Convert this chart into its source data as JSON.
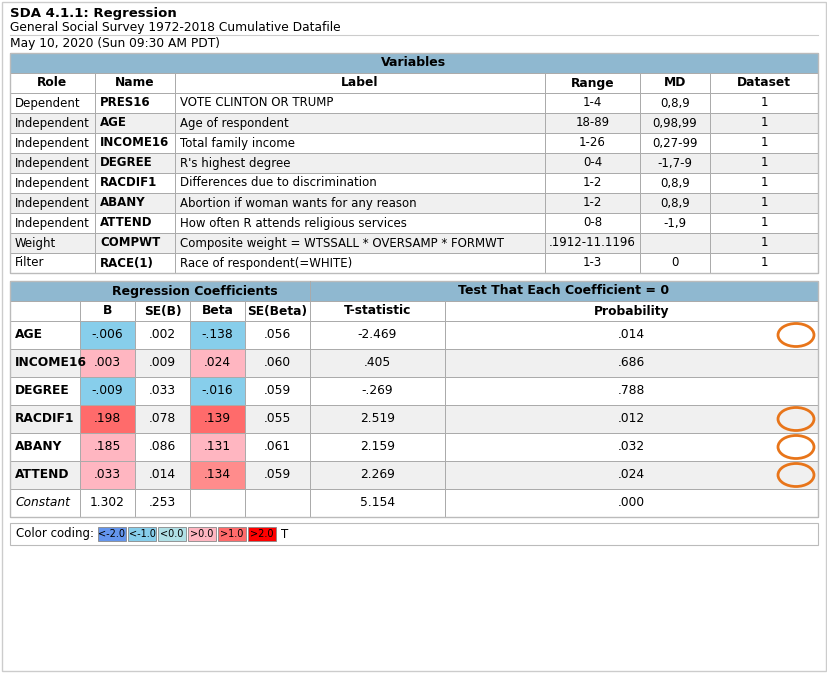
{
  "title": "SDA 4.1.1: Regression",
  "subtitle1": "General Social Survey 1972-2018 Cumulative Datafile",
  "subtitle2": "May 10, 2020 (Sun 09:30 AM PDT)",
  "var_table_header": "Variables",
  "var_col_headers": [
    "Role",
    "Name",
    "Label",
    "Range",
    "MD",
    "Dataset"
  ],
  "var_rows": [
    [
      "Dependent",
      "PRES16",
      "VOTE CLINTON OR TRUMP",
      "1-4",
      "0,8,9",
      "1"
    ],
    [
      "Independent",
      "AGE",
      "Age of respondent",
      "18-89",
      "0,98,99",
      "1"
    ],
    [
      "Independent",
      "INCOME16",
      "Total family income",
      "1-26",
      "0,27-99",
      "1"
    ],
    [
      "Independent",
      "DEGREE",
      "R's highest degree",
      "0-4",
      "-1,7-9",
      "1"
    ],
    [
      "Independent",
      "RACDIF1",
      "Differences due to discrimination",
      "1-2",
      "0,8,9",
      "1"
    ],
    [
      "Independent",
      "ABANY",
      "Abortion if woman wants for any reason",
      "1-2",
      "0,8,9",
      "1"
    ],
    [
      "Independent",
      "ATTEND",
      "How often R attends religious services",
      "0-8",
      "-1,9",
      "1"
    ],
    [
      "Weight",
      "COMPWT",
      "Composite weight = WTSSALL * OVERSAMP * FORMWT",
      ".1912-11.1196",
      "",
      "1"
    ],
    [
      "Filter",
      "RACE(1)",
      "Race of respondent(=WHITE)",
      "1-3",
      "0",
      "1"
    ]
  ],
  "reg_header1": "Regression Coefficients",
  "reg_header2": "Test That Each Coefficient = 0",
  "reg_col_headers": [
    "",
    "B",
    "SE(B)",
    "Beta",
    "SE(Beta)",
    "T-statistic",
    "Probability"
  ],
  "reg_rows": [
    [
      "AGE",
      "-.006",
      ".002",
      "-.138",
      ".056",
      "-2.469",
      ".014"
    ],
    [
      "INCOME16",
      ".003",
      ".009",
      ".024",
      ".060",
      ".405",
      ".686"
    ],
    [
      "DEGREE",
      "-.009",
      ".033",
      "-.016",
      ".059",
      "-.269",
      ".788"
    ],
    [
      "RACDIF1",
      ".198",
      ".078",
      ".139",
      ".055",
      "2.519",
      ".012"
    ],
    [
      "ABANY",
      ".185",
      ".086",
      ".131",
      ".061",
      "2.159",
      ".032"
    ],
    [
      "ATTEND",
      ".033",
      ".014",
      ".134",
      ".059",
      "2.269",
      ".024"
    ],
    [
      "Constant",
      "1.302",
      ".253",
      "",
      "",
      "5.154",
      ".000"
    ]
  ],
  "B_colors": {
    "AGE": "#87CEEB",
    "INCOME16": "#FFB6C1",
    "DEGREE": "#87CEEB",
    "RACDIF1": "#FF6B6B",
    "ABANY": "#FFB6C1",
    "ATTEND": "#FFB6C1",
    "Constant": "none"
  },
  "Beta_colors": {
    "AGE": "#87CEEB",
    "INCOME16": "#FFB6C1",
    "DEGREE": "#87CEEB",
    "RACDIF1": "#FF6B6B",
    "ABANY": "#FFB6C1",
    "ATTEND": "#FF8C8C",
    "Constant": "none"
  },
  "circled_probs": [
    "AGE",
    "RACDIF1",
    "ABANY",
    "ATTEND"
  ],
  "color_coding_labels": [
    "<-2.0",
    "<-1.0",
    "<0.0",
    ">0.0",
    ">1.0",
    ">2.0",
    "T"
  ],
  "color_coding_colors": [
    "#6495ED",
    "#87CEEB",
    "#B0E0E6",
    "#FFB6C1",
    "#FF6B6B",
    "#FF0000",
    "none"
  ],
  "table_header_bg": "#8FB8D0",
  "alt_row_bg": "#F0F0F0",
  "border_color": "#AAAAAA",
  "orange_circle_color": "#E8751A",
  "fig_bg": "#FFFFFF",
  "outer_border": "#BBBBBB"
}
